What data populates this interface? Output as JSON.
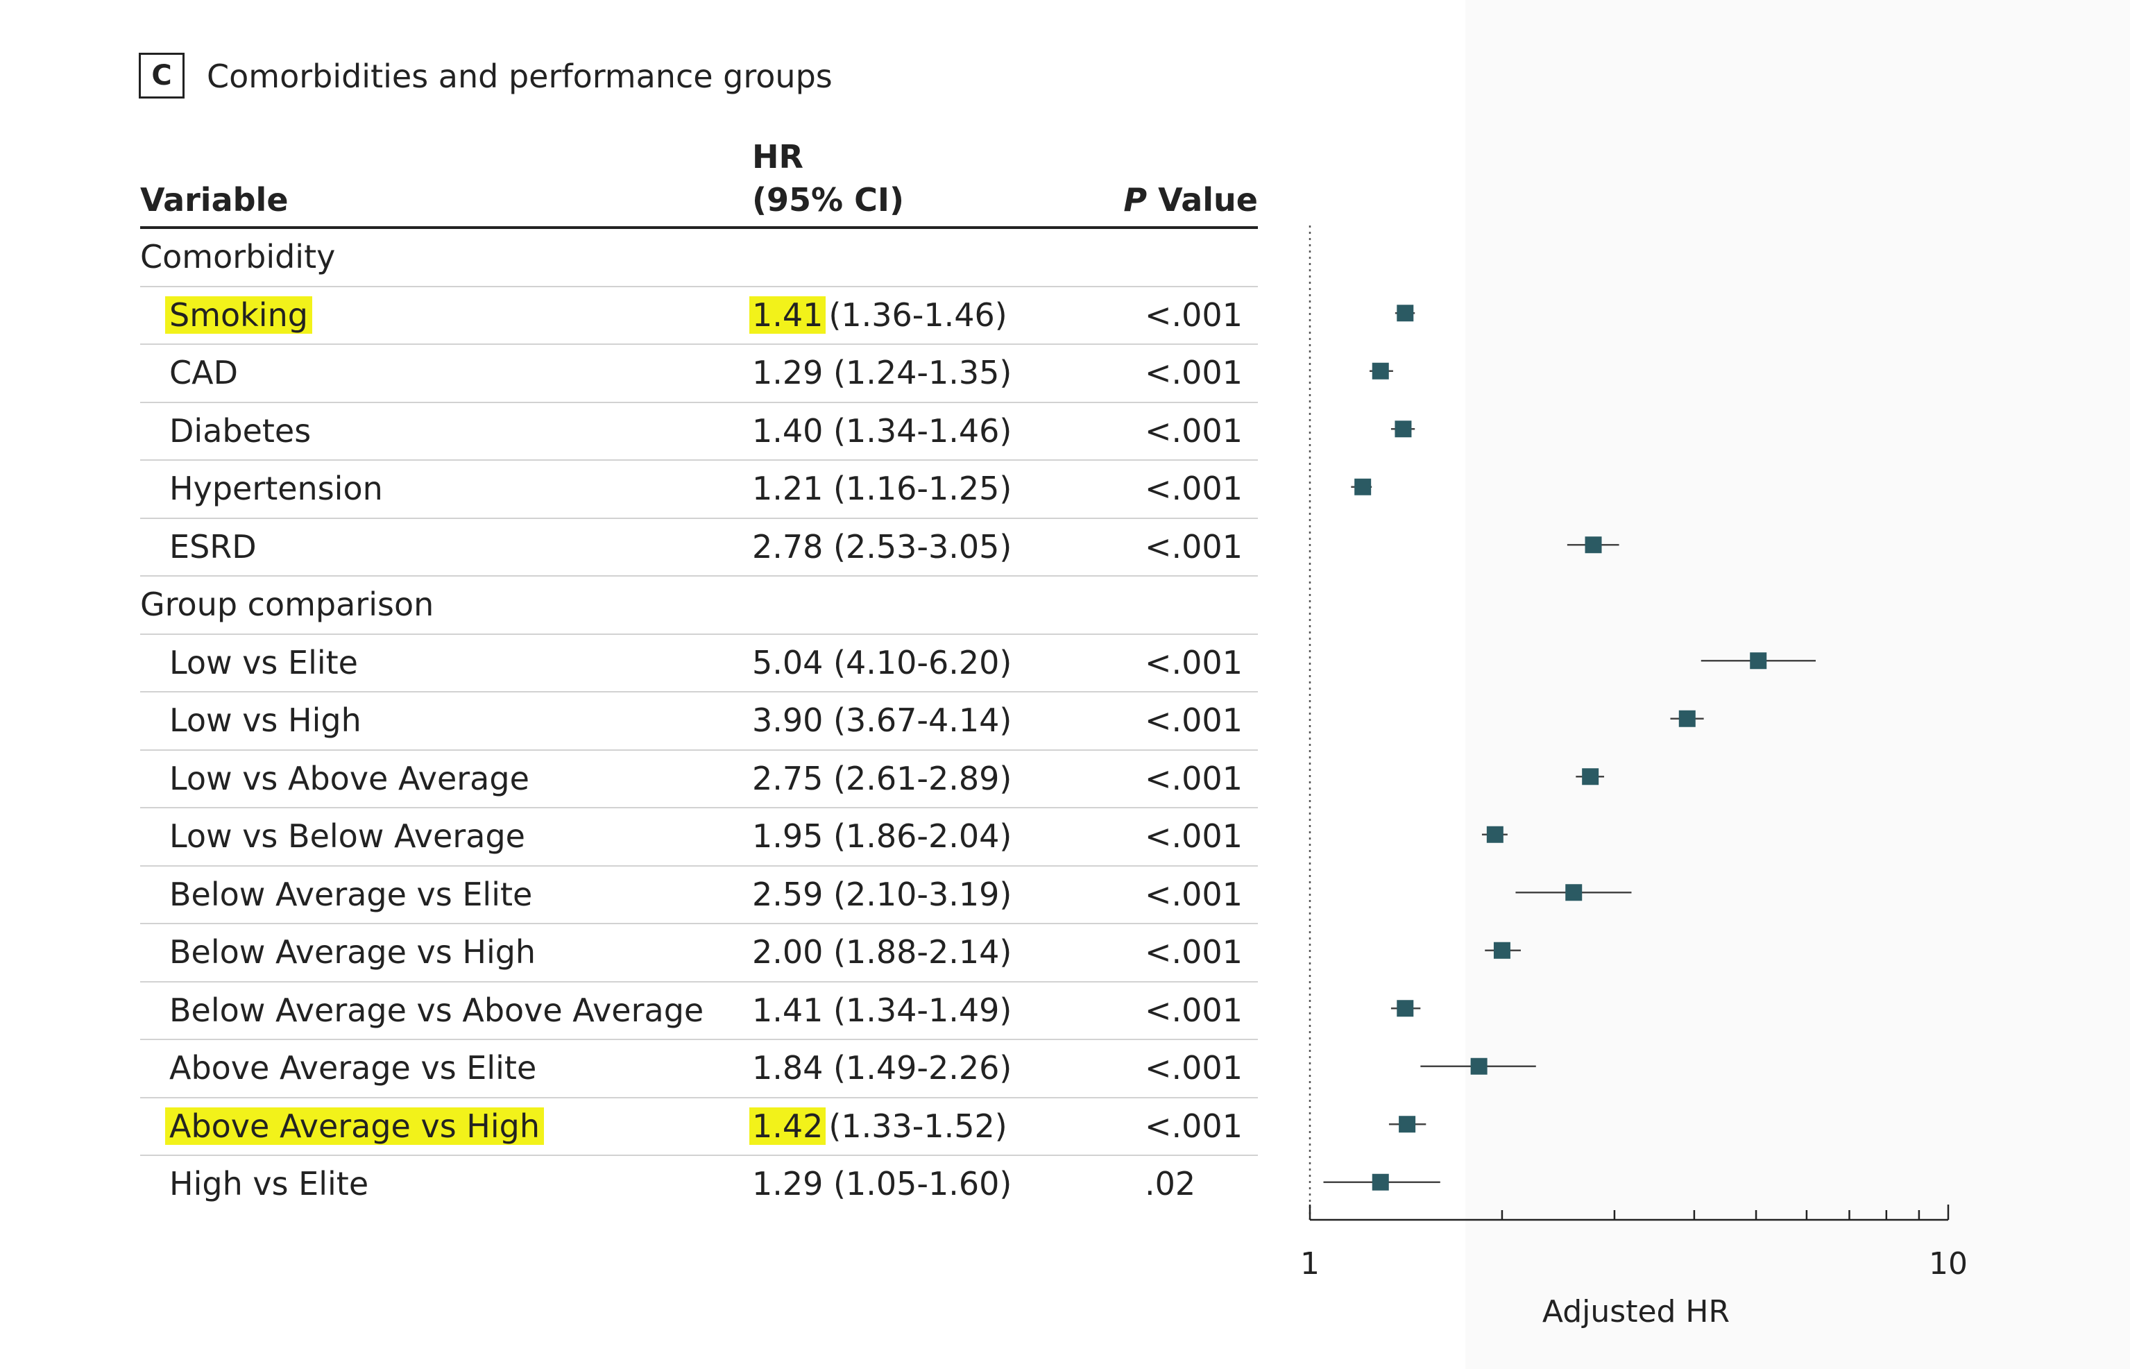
{
  "panel": {
    "letter": "C",
    "title": "Comorbidities and performance groups"
  },
  "header": {
    "variable": "Variable",
    "hr_line1": "HR",
    "hr_line2": "(95% CI)",
    "p_italic": "P",
    "p_rest": " Value"
  },
  "colors": {
    "marker": "#2b5a63",
    "highlight": "#f2f21a",
    "line": "#222222"
  },
  "rows": [
    {
      "type": "group",
      "label": "Comorbidity"
    },
    {
      "type": "item",
      "label": "Smoking",
      "hr": "1.41",
      "ci": "(1.36-1.46)",
      "p": "<.001",
      "highlight": true
    },
    {
      "type": "item",
      "label": "CAD",
      "hr": "1.29",
      "ci": "(1.24-1.35)",
      "p": "<.001"
    },
    {
      "type": "item",
      "label": "Diabetes",
      "hr": "1.40",
      "ci": "(1.34-1.46)",
      "p": "<.001"
    },
    {
      "type": "item",
      "label": "Hypertension",
      "hr": "1.21",
      "ci": "(1.16-1.25)",
      "p": "<.001"
    },
    {
      "type": "item",
      "label": "ESRD",
      "hr": "2.78",
      "ci": "(2.53-3.05)",
      "p": "<.001"
    },
    {
      "type": "group",
      "label": "Group comparison"
    },
    {
      "type": "item",
      "label": "Low vs Elite",
      "hr": "5.04",
      "ci": "(4.10-6.20)",
      "p": "<.001"
    },
    {
      "type": "item",
      "label": "Low vs High",
      "hr": "3.90",
      "ci": "(3.67-4.14)",
      "p": "<.001"
    },
    {
      "type": "item",
      "label": "Low vs Above Average",
      "hr": "2.75",
      "ci": "(2.61-2.89)",
      "p": "<.001"
    },
    {
      "type": "item",
      "label": "Low vs Below Average",
      "hr": "1.95",
      "ci": "(1.86-2.04)",
      "p": "<.001"
    },
    {
      "type": "item",
      "label": "Below Average vs Elite",
      "hr": "2.59",
      "ci": "(2.10-3.19)",
      "p": "<.001"
    },
    {
      "type": "item",
      "label": "Below Average vs High",
      "hr": "2.00",
      "ci": "(1.88-2.14)",
      "p": "<.001"
    },
    {
      "type": "item",
      "label": "Below Average vs Above Average",
      "hr": "1.41",
      "ci": "(1.34-1.49)",
      "p": "<.001"
    },
    {
      "type": "item",
      "label": "Above Average vs Elite",
      "hr": "1.84",
      "ci": "(1.49-2.26)",
      "p": "<.001"
    },
    {
      "type": "item",
      "label": "Above Average vs High",
      "hr": "1.42",
      "ci": "(1.33-1.52)",
      "p": "<.001",
      "highlight": true
    },
    {
      "type": "item",
      "label": "High vs Elite",
      "hr": "1.29",
      "ci": "(1.05-1.60)",
      "p": ".02"
    }
  ],
  "chart_data": {
    "type": "scatter",
    "subtype": "forest-plot",
    "xlabel": "Adjusted HR",
    "xscale": "log",
    "xlim": [
      1,
      10
    ],
    "x_tick_labels": [
      "1",
      "10"
    ],
    "reference_line": 1,
    "points": [
      {
        "label": "Smoking",
        "hr": 1.41,
        "lo": 1.36,
        "hi": 1.46
      },
      {
        "label": "CAD",
        "hr": 1.29,
        "lo": 1.24,
        "hi": 1.35
      },
      {
        "label": "Diabetes",
        "hr": 1.4,
        "lo": 1.34,
        "hi": 1.46
      },
      {
        "label": "Hypertension",
        "hr": 1.21,
        "lo": 1.16,
        "hi": 1.25
      },
      {
        "label": "ESRD",
        "hr": 2.78,
        "lo": 2.53,
        "hi": 3.05
      },
      {
        "label": "Low vs Elite",
        "hr": 5.04,
        "lo": 4.1,
        "hi": 6.2
      },
      {
        "label": "Low vs High",
        "hr": 3.9,
        "lo": 3.67,
        "hi": 4.14
      },
      {
        "label": "Low vs Above Average",
        "hr": 2.75,
        "lo": 2.61,
        "hi": 2.89
      },
      {
        "label": "Low vs Below Average",
        "hr": 1.95,
        "lo": 1.86,
        "hi": 2.04
      },
      {
        "label": "Below Average vs Elite",
        "hr": 2.59,
        "lo": 2.1,
        "hi": 3.19
      },
      {
        "label": "Below Average vs High",
        "hr": 2.0,
        "lo": 1.88,
        "hi": 2.14
      },
      {
        "label": "Below Average vs Above Average",
        "hr": 1.41,
        "lo": 1.34,
        "hi": 1.49
      },
      {
        "label": "Above Average vs Elite",
        "hr": 1.84,
        "lo": 1.49,
        "hi": 2.26
      },
      {
        "label": "Above Average vs High",
        "hr": 1.42,
        "lo": 1.33,
        "hi": 1.52
      },
      {
        "label": "High vs Elite",
        "hr": 1.29,
        "lo": 1.05,
        "hi": 1.6
      }
    ]
  }
}
